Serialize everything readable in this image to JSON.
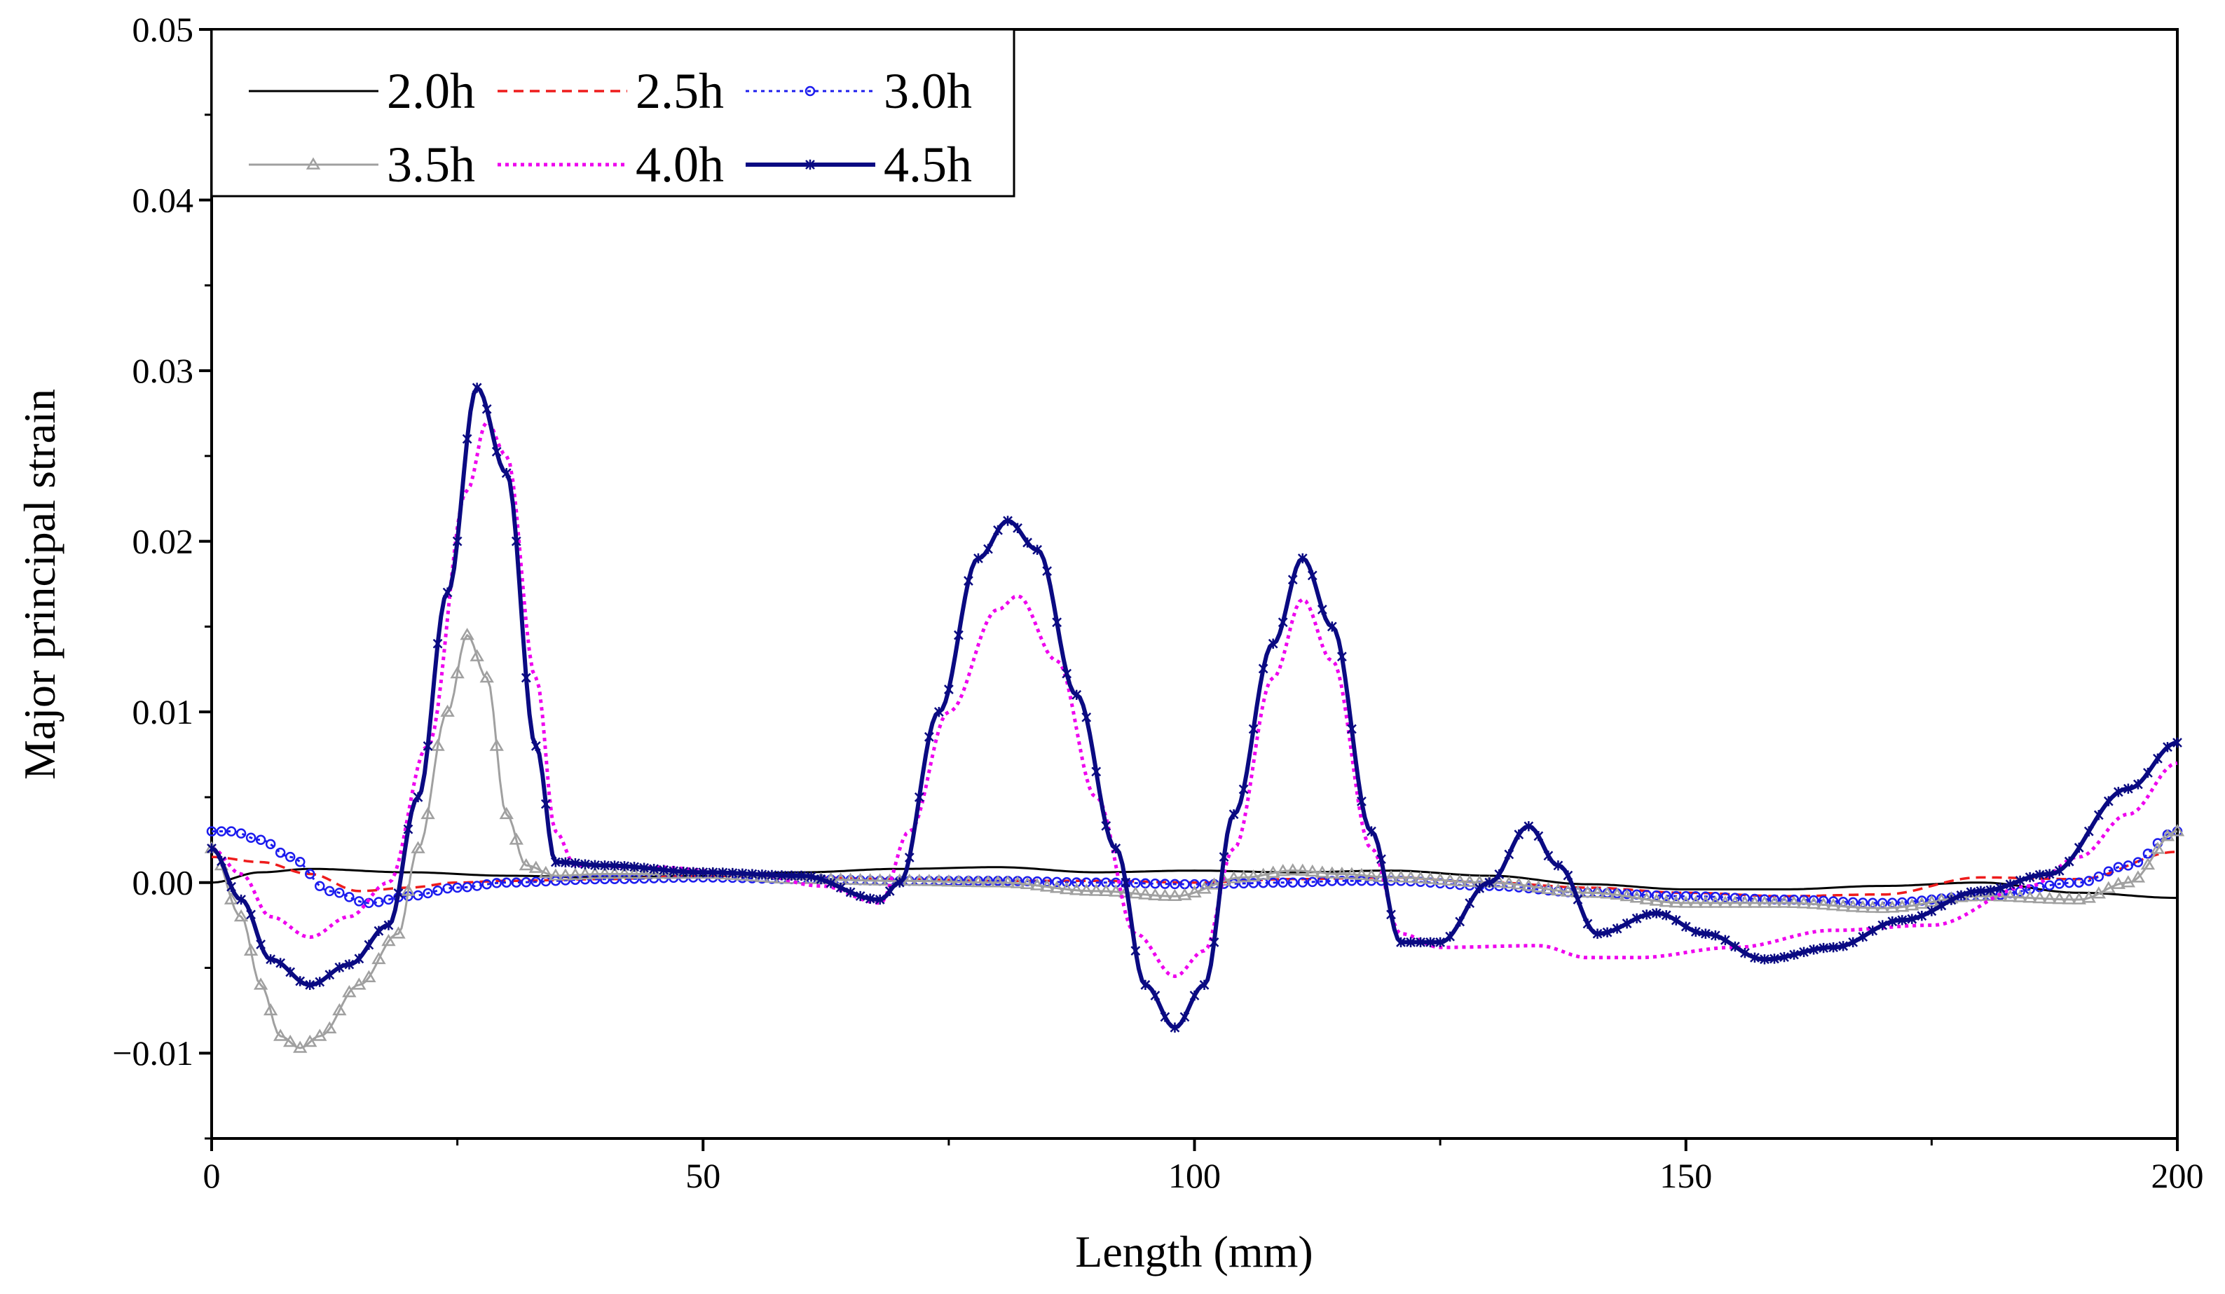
{
  "chart_data": {
    "type": "line",
    "title": "",
    "xlabel": "Length (mm)",
    "ylabel": "Major principal strain",
    "xlim": [
      0,
      200
    ],
    "ylim": [
      -0.015,
      0.05
    ],
    "xticks": [
      0,
      50,
      100,
      150,
      200
    ],
    "xtick_labels": [
      "0",
      "50",
      "100",
      "150",
      "200"
    ],
    "yticks": [
      -0.01,
      0.0,
      0.01,
      0.02,
      0.03,
      0.04,
      0.05
    ],
    "ytick_labels": [
      "−0.01",
      "0.00",
      "0.01",
      "0.02",
      "0.03",
      "0.04",
      "0.05"
    ],
    "grid": false,
    "legend_position": "top-left",
    "series": [
      {
        "name": "2.0h",
        "color": "#000000",
        "dash": "solid",
        "marker": "none",
        "points": [
          [
            0,
            0.0
          ],
          [
            5,
            0.0006
          ],
          [
            10,
            0.0008
          ],
          [
            20,
            0.0006
          ],
          [
            30,
            0.0004
          ],
          [
            40,
            0.0003
          ],
          [
            50,
            0.0004
          ],
          [
            60,
            0.0006
          ],
          [
            70,
            0.0008
          ],
          [
            80,
            0.0009
          ],
          [
            90,
            0.0006
          ],
          [
            100,
            0.0007
          ],
          [
            110,
            0.0006
          ],
          [
            120,
            0.0007
          ],
          [
            130,
            0.0004
          ],
          [
            140,
            -0.0001
          ],
          [
            150,
            -0.0004
          ],
          [
            160,
            -0.0004
          ],
          [
            170,
            -0.0002
          ],
          [
            180,
            0.0
          ],
          [
            190,
            -0.0006
          ],
          [
            200,
            -0.0009
          ]
        ]
      },
      {
        "name": "2.5h",
        "color": "#ee1c1c",
        "dash": "dashed",
        "marker": "none",
        "points": [
          [
            0,
            0.0015
          ],
          [
            5,
            0.0012
          ],
          [
            10,
            0.0005
          ],
          [
            15,
            -0.0005
          ],
          [
            20,
            -0.0003
          ],
          [
            25,
            0.0
          ],
          [
            30,
            0.0001
          ],
          [
            40,
            0.0002
          ],
          [
            50,
            0.0004
          ],
          [
            60,
            0.0003
          ],
          [
            70,
            0.0002
          ],
          [
            80,
            0.0001
          ],
          [
            90,
            0.0001
          ],
          [
            100,
            0.0
          ],
          [
            110,
            0.0002
          ],
          [
            120,
            0.0003
          ],
          [
            130,
            0.0
          ],
          [
            140,
            -0.0003
          ],
          [
            150,
            -0.0006
          ],
          [
            160,
            -0.0008
          ],
          [
            170,
            -0.0007
          ],
          [
            180,
            0.0003
          ],
          [
            190,
            0.0002
          ],
          [
            200,
            0.0018
          ]
        ]
      },
      {
        "name": "3.0h",
        "color": "#1c1cee",
        "dash": "dotted",
        "marker": "circle",
        "points": [
          [
            0,
            0.003
          ],
          [
            2,
            0.003
          ],
          [
            5,
            0.0025
          ],
          [
            8,
            0.0015
          ],
          [
            12,
            -0.0005
          ],
          [
            16,
            -0.0012
          ],
          [
            20,
            -0.0008
          ],
          [
            25,
            -0.0003
          ],
          [
            30,
            0.0
          ],
          [
            40,
            0.0002
          ],
          [
            50,
            0.0003
          ],
          [
            60,
            0.0002
          ],
          [
            70,
            0.0001
          ],
          [
            80,
            0.0001
          ],
          [
            90,
            0.0
          ],
          [
            100,
            -0.0001
          ],
          [
            110,
            0.0
          ],
          [
            115,
            0.0001
          ],
          [
            120,
            0.0001
          ],
          [
            130,
            -0.0002
          ],
          [
            140,
            -0.0006
          ],
          [
            150,
            -0.0008
          ],
          [
            160,
            -0.001
          ],
          [
            170,
            -0.0012
          ],
          [
            180,
            -0.0008
          ],
          [
            190,
            0.0
          ],
          [
            195,
            0.001
          ],
          [
            200,
            0.003
          ]
        ]
      },
      {
        "name": "3.5h",
        "color": "#a0a0a0",
        "dash": "solid",
        "marker": "triangle",
        "points": [
          [
            0,
            0.002
          ],
          [
            3,
            -0.002
          ],
          [
            5,
            -0.006
          ],
          [
            7,
            -0.009
          ],
          [
            9,
            -0.0097
          ],
          [
            11,
            -0.009
          ],
          [
            15,
            -0.006
          ],
          [
            19,
            -0.003
          ],
          [
            21,
            0.002
          ],
          [
            24,
            0.01
          ],
          [
            26,
            0.0145
          ],
          [
            28,
            0.012
          ],
          [
            30,
            0.004
          ],
          [
            32,
            0.001
          ],
          [
            35,
            0.0004
          ],
          [
            40,
            0.0005
          ],
          [
            50,
            0.0005
          ],
          [
            60,
            0.0002
          ],
          [
            70,
            0.0001
          ],
          [
            80,
            0.0
          ],
          [
            90,
            -0.0005
          ],
          [
            98,
            -0.0008
          ],
          [
            105,
            0.0003
          ],
          [
            110,
            0.0007
          ],
          [
            115,
            0.0005
          ],
          [
            120,
            0.0003
          ],
          [
            130,
            0.0
          ],
          [
            140,
            -0.0006
          ],
          [
            150,
            -0.0012
          ],
          [
            160,
            -0.0012
          ],
          [
            170,
            -0.0015
          ],
          [
            180,
            -0.0008
          ],
          [
            190,
            -0.001
          ],
          [
            195,
            0.0
          ],
          [
            200,
            0.003
          ]
        ]
      },
      {
        "name": "4.0h",
        "color": "#ee00ee",
        "dash": "dotted",
        "marker": "none",
        "points": [
          [
            0,
            0.002
          ],
          [
            3,
            0.0005
          ],
          [
            6,
            -0.002
          ],
          [
            10,
            -0.0032
          ],
          [
            14,
            -0.002
          ],
          [
            18,
            0.0
          ],
          [
            22,
            0.008
          ],
          [
            26,
            0.023
          ],
          [
            28,
            0.027
          ],
          [
            30,
            0.025
          ],
          [
            33,
            0.012
          ],
          [
            35,
            0.003
          ],
          [
            37,
            0.001
          ],
          [
            45,
            0.0009
          ],
          [
            55,
            0.0005
          ],
          [
            62,
            -0.0002
          ],
          [
            68,
            -0.0012
          ],
          [
            71,
            0.003
          ],
          [
            75,
            0.01
          ],
          [
            80,
            0.016
          ],
          [
            82,
            0.0168
          ],
          [
            86,
            0.013
          ],
          [
            90,
            0.005
          ],
          [
            94,
            -0.003
          ],
          [
            98,
            -0.0055
          ],
          [
            101,
            -0.004
          ],
          [
            104,
            0.002
          ],
          [
            108,
            0.012
          ],
          [
            111,
            0.0166
          ],
          [
            114,
            0.013
          ],
          [
            118,
            0.002
          ],
          [
            121,
            -0.003
          ],
          [
            125,
            -0.0038
          ],
          [
            135,
            -0.0037
          ],
          [
            140,
            -0.0044
          ],
          [
            145,
            -0.0044
          ],
          [
            155,
            -0.0038
          ],
          [
            165,
            -0.0028
          ],
          [
            175,
            -0.0025
          ],
          [
            185,
            -0.0002
          ],
          [
            190,
            0.0015
          ],
          [
            195,
            0.004
          ],
          [
            200,
            0.007
          ]
        ]
      },
      {
        "name": "4.5h",
        "color": "#0a0a82",
        "dash": "solid",
        "marker": "x",
        "points": [
          [
            0,
            0.002
          ],
          [
            3,
            -0.001
          ],
          [
            6,
            -0.0045
          ],
          [
            10,
            -0.006
          ],
          [
            14,
            -0.0048
          ],
          [
            18,
            -0.0025
          ],
          [
            21,
            0.005
          ],
          [
            24,
            0.017
          ],
          [
            27,
            0.029
          ],
          [
            30,
            0.024
          ],
          [
            33,
            0.008
          ],
          [
            35,
            0.0012
          ],
          [
            40,
            0.001
          ],
          [
            50,
            0.0006
          ],
          [
            60,
            0.0004
          ],
          [
            68,
            -0.001
          ],
          [
            70,
            0.0
          ],
          [
            74,
            0.01
          ],
          [
            78,
            0.019
          ],
          [
            81,
            0.0212
          ],
          [
            84,
            0.0195
          ],
          [
            88,
            0.011
          ],
          [
            92,
            0.002
          ],
          [
            95,
            -0.006
          ],
          [
            98,
            -0.0085
          ],
          [
            101,
            -0.006
          ],
          [
            104,
            0.004
          ],
          [
            108,
            0.014
          ],
          [
            111,
            0.019
          ],
          [
            114,
            0.015
          ],
          [
            118,
            0.003
          ],
          [
            121,
            -0.0035
          ],
          [
            125,
            -0.0035
          ],
          [
            130,
            0.0
          ],
          [
            134,
            0.0033
          ],
          [
            137,
            0.001
          ],
          [
            141,
            -0.003
          ],
          [
            147,
            -0.0018
          ],
          [
            152,
            -0.003
          ],
          [
            158,
            -0.0045
          ],
          [
            165,
            -0.0038
          ],
          [
            172,
            -0.0022
          ],
          [
            180,
            -0.0005
          ],
          [
            187,
            0.0005
          ],
          [
            195,
            0.0055
          ],
          [
            200,
            0.0082
          ]
        ]
      }
    ]
  }
}
